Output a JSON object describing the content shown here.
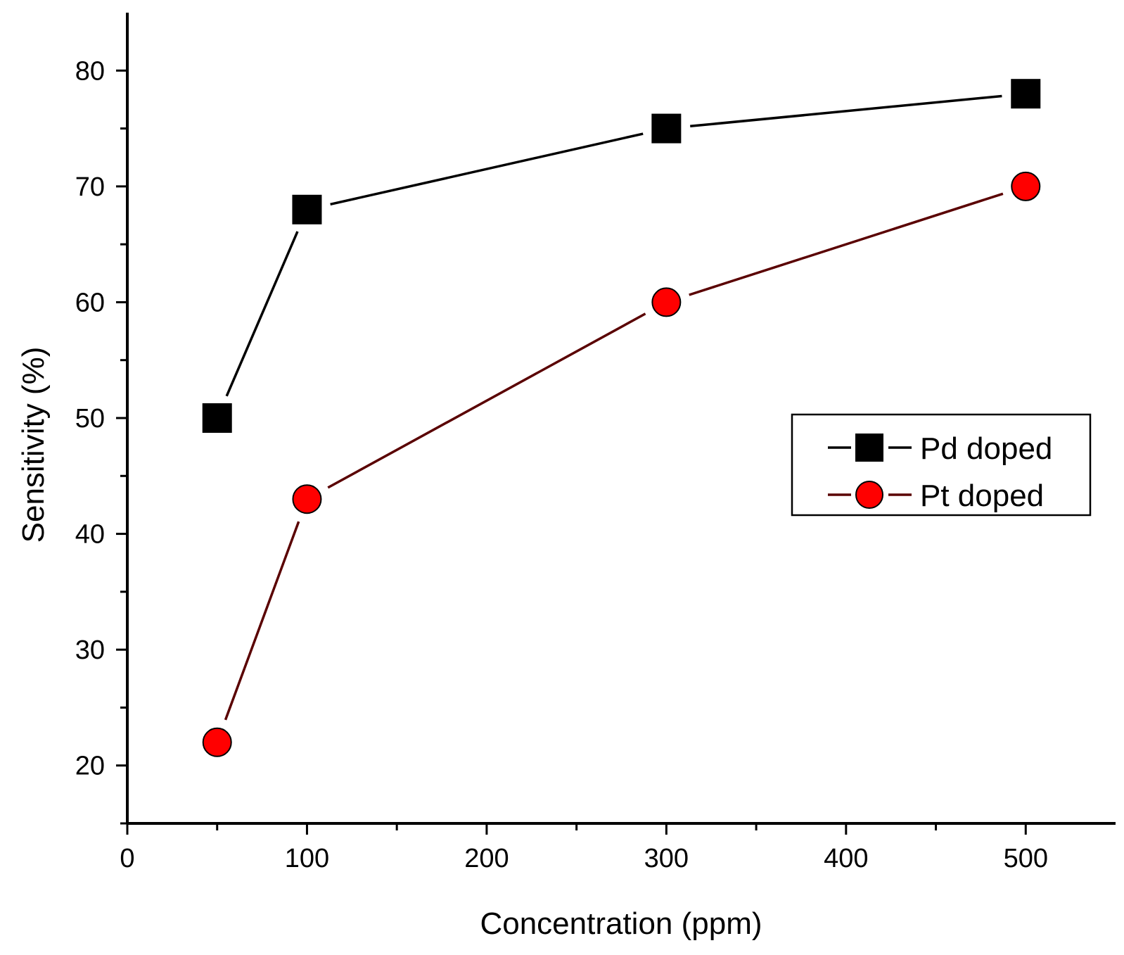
{
  "chart_data": {
    "type": "line",
    "title": "",
    "xlabel": "Concentration (ppm)",
    "ylabel": "Sensitivity (%)",
    "xlim": [
      0,
      550
    ],
    "ylim": [
      15,
      85
    ],
    "xticks": [
      0,
      100,
      200,
      300,
      400,
      500
    ],
    "xtick_labels": [
      "0",
      "100",
      "200",
      "300",
      "400",
      "500"
    ],
    "yticks": [
      20,
      30,
      40,
      50,
      60,
      70,
      80
    ],
    "ytick_labels": [
      "20",
      "30",
      "40",
      "50",
      "60",
      "70",
      "80"
    ],
    "x": [
      50,
      100,
      300,
      500
    ],
    "grid": false,
    "legend_position": "right-middle",
    "series": [
      {
        "name": "Pd doped",
        "values": [
          50,
          68,
          75,
          78
        ],
        "marker": "square",
        "marker_color": "#000000",
        "line_color": "#000000"
      },
      {
        "name": "Pt doped",
        "values": [
          22,
          43,
          60,
          70
        ],
        "marker": "circle",
        "marker_color": "#ff0000",
        "line_color": "#5a0000"
      }
    ]
  }
}
